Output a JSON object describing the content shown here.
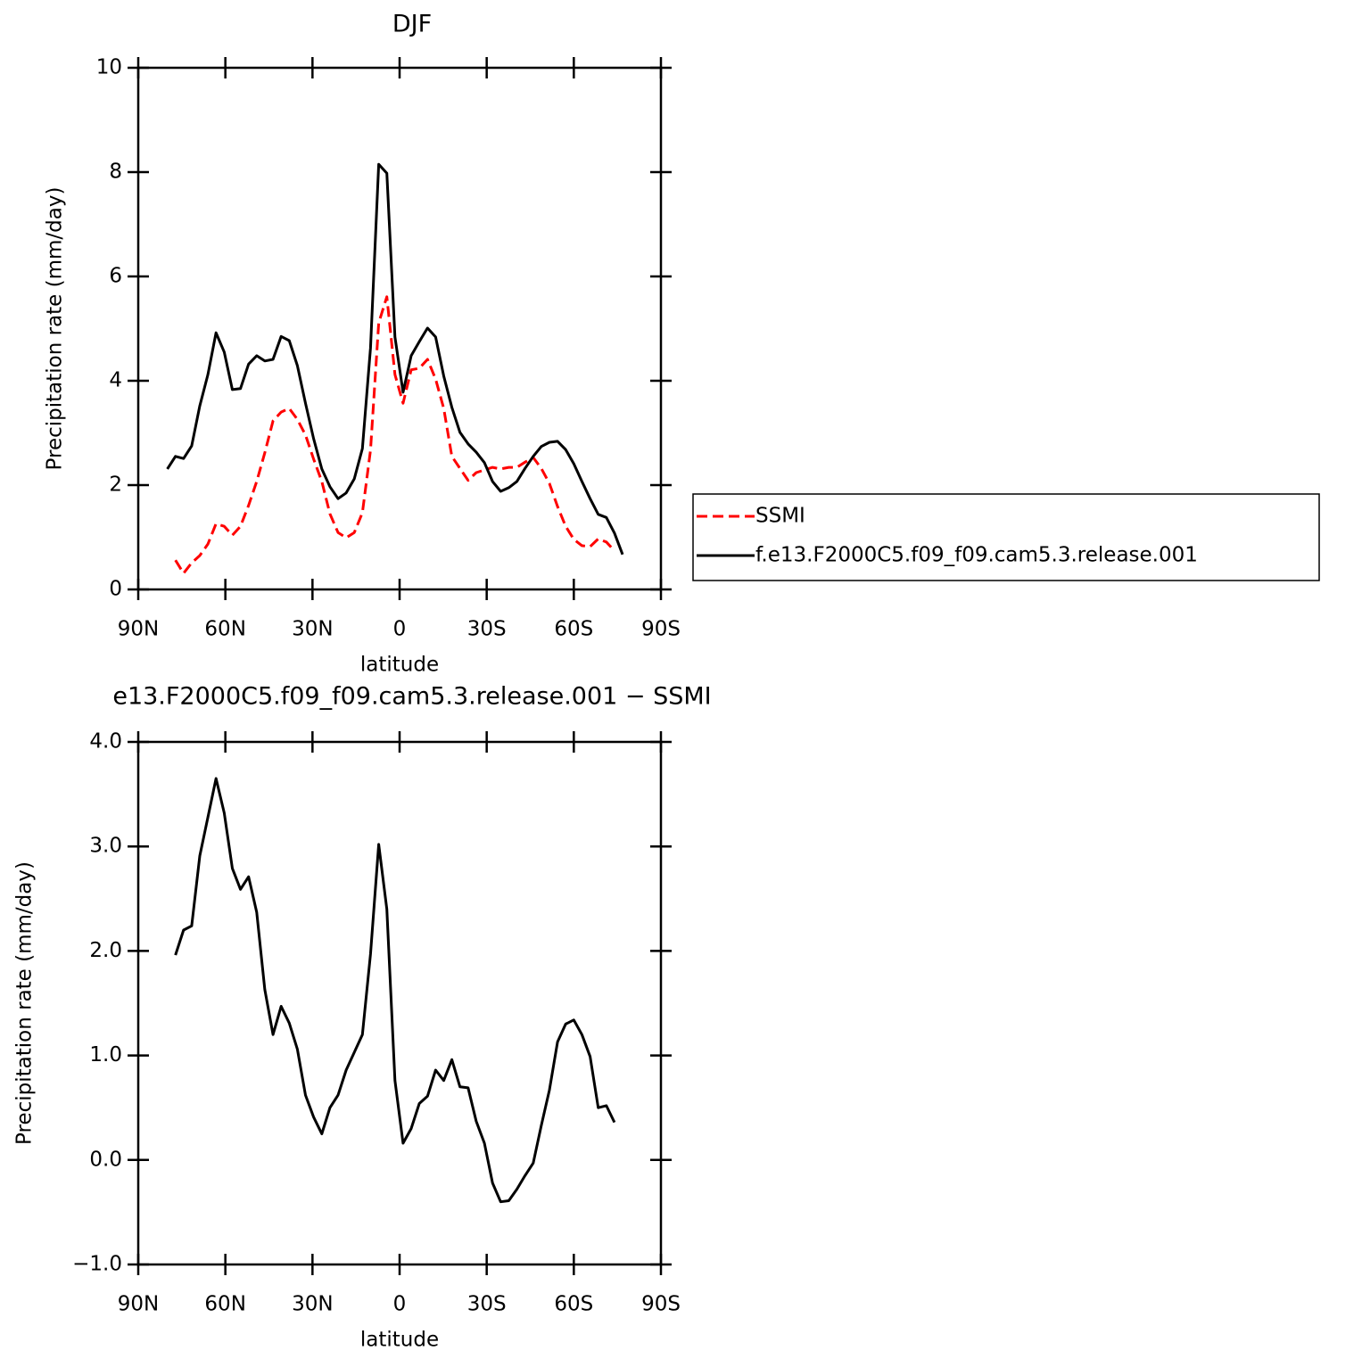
{
  "chart_data": [
    {
      "type": "line",
      "title": "DJF",
      "xlabel": "latitude",
      "ylabel": "Precipitation rate (mm/day)",
      "xlim": [
        90,
        -90
      ],
      "xticks": [
        {
          "value": 90,
          "label": "90N"
        },
        {
          "value": 60,
          "label": "60N"
        },
        {
          "value": 30,
          "label": "30N"
        },
        0,
        {
          "value": -30,
          "label": "30S"
        },
        {
          "value": -60,
          "label": "60S"
        },
        {
          "value": -90,
          "label": "90S"
        }
      ],
      "ylim": [
        0,
        10
      ],
      "yticks": [
        0,
        2,
        4,
        6,
        8,
        10
      ],
      "legend": "right",
      "series": [
        {
          "name": "SSMI",
          "color": "#ff0000",
          "linestyle": "dashed",
          "x": [
            77.2,
            74.4,
            71.6,
            68.8,
            66,
            63.2,
            60.4,
            57.6,
            54.8,
            52,
            49.2,
            46.4,
            43.6,
            40.8,
            38,
            35.2,
            32.4,
            29.6,
            26.8,
            24,
            21.2,
            18.4,
            15.6,
            12.8,
            10,
            7.2,
            4.4,
            1.6,
            -1.2,
            -4,
            -6.8,
            -9.6,
            -12.4,
            -15.2,
            -18,
            -20.8,
            -23.6,
            -26.4,
            -29.2,
            -32,
            -34.8,
            -37.6,
            -40.4,
            -43.2,
            -46,
            -48.8,
            -51.6,
            -54.4,
            -57.2,
            -60,
            -62.8,
            -65.6,
            -68.4,
            -71.2,
            -74
          ],
          "values": [
            0.56,
            0.31,
            0.51,
            0.65,
            0.87,
            1.26,
            1.21,
            1.04,
            1.21,
            1.61,
            2.07,
            2.62,
            3.23,
            3.4,
            3.47,
            3.26,
            2.96,
            2.5,
            2.07,
            1.45,
            1.09,
            0.99,
            1.09,
            1.47,
            2.67,
            5.11,
            5.61,
            4.12,
            3.57,
            4.21,
            4.24,
            4.41,
            4.03,
            3.47,
            2.55,
            2.32,
            2.09,
            2.24,
            2.29,
            2.34,
            2.31,
            2.34,
            2.34,
            2.44,
            2.53,
            2.32,
            2.03,
            1.59,
            1.21,
            0.96,
            0.84,
            0.82,
            0.97,
            0.91,
            0.74
          ]
        },
        {
          "name": "f.e13.F2000C5.f09_f09.cam5.3.release.001",
          "color": "#000000",
          "linestyle": "solid",
          "x": [
            80,
            77.2,
            74.4,
            71.6,
            68.8,
            66,
            63.2,
            60.4,
            57.6,
            54.8,
            52,
            49.2,
            46.4,
            43.6,
            40.8,
            38,
            35.2,
            32.4,
            29.6,
            26.8,
            24,
            21.2,
            18.4,
            15.6,
            12.8,
            10,
            7.2,
            4.4,
            1.6,
            -1.2,
            -4,
            -6.8,
            -9.6,
            -12.4,
            -15.2,
            -18,
            -20.8,
            -23.6,
            -26.4,
            -29.2,
            -32,
            -34.8,
            -37.6,
            -40.4,
            -43.2,
            -46,
            -48.8,
            -51.6,
            -54.4,
            -57.2,
            -60,
            -62.8,
            -65.6,
            -68.4,
            -71.2,
            -74,
            -76.8
          ],
          "values": [
            2.31,
            2.55,
            2.51,
            2.75,
            3.52,
            4.12,
            4.92,
            4.55,
            3.83,
            3.85,
            4.32,
            4.48,
            4.38,
            4.41,
            4.85,
            4.77,
            4.29,
            3.57,
            2.89,
            2.31,
            1.97,
            1.74,
            1.85,
            2.12,
            2.7,
            4.63,
            8.15,
            7.98,
            4.84,
            3.78,
            4.48,
            4.75,
            5.01,
            4.84,
            4.09,
            3.49,
            3.01,
            2.79,
            2.63,
            2.43,
            2.07,
            1.88,
            1.95,
            2.07,
            2.32,
            2.55,
            2.74,
            2.82,
            2.84,
            2.68,
            2.41,
            2.07,
            1.74,
            1.44,
            1.38,
            1.08,
            0.67
          ]
        }
      ]
    },
    {
      "type": "line",
      "title": "e13.F2000C5.f09_f09.cam5.3.release.001 − SSMI",
      "xlabel": "latitude",
      "ylabel": "Precipitation rate (mm/day)",
      "xlim": [
        90,
        -90
      ],
      "xticks": [
        {
          "value": 90,
          "label": "90N"
        },
        {
          "value": 60,
          "label": "60N"
        },
        {
          "value": 30,
          "label": "30N"
        },
        0,
        {
          "value": -30,
          "label": "30S"
        },
        {
          "value": -60,
          "label": "60S"
        },
        {
          "value": -90,
          "label": "90S"
        }
      ],
      "ylim": [
        -1,
        4
      ],
      "yticks": [
        {
          "value": -1,
          "label": "−1.0"
        },
        {
          "value": 0,
          "label": "0.0"
        },
        {
          "value": 1,
          "label": "1.0"
        },
        {
          "value": 2,
          "label": "2.0"
        },
        {
          "value": 3,
          "label": "3.0"
        },
        {
          "value": 4,
          "label": "4.0"
        }
      ],
      "series": [
        {
          "color": "#000000",
          "linestyle": "solid",
          "x": [
            77.2,
            74.4,
            71.6,
            68.8,
            66,
            63.2,
            60.4,
            57.6,
            54.8,
            52,
            49.2,
            46.4,
            43.6,
            40.8,
            38,
            35.2,
            32.4,
            29.6,
            26.8,
            24,
            21.2,
            18.4,
            15.6,
            12.8,
            10,
            7.2,
            4.4,
            1.6,
            -1.2,
            -4,
            -6.8,
            -9.6,
            -12.4,
            -15.2,
            -18,
            -20.8,
            -23.6,
            -26.4,
            -29.2,
            -32,
            -34.8,
            -37.6,
            -40.4,
            -43.2,
            -46,
            -48.8,
            -51.6,
            -54.4,
            -57.2,
            -60,
            -62.8,
            -65.6,
            -68.4,
            -71.2,
            -74
          ],
          "values": [
            1.96,
            2.2,
            2.24,
            2.91,
            3.28,
            3.65,
            3.32,
            2.79,
            2.59,
            2.71,
            2.37,
            1.63,
            1.2,
            1.47,
            1.31,
            1.06,
            0.62,
            0.41,
            0.25,
            0.5,
            0.62,
            0.86,
            1.03,
            1.2,
            1.97,
            3.02,
            2.4,
            0.76,
            0.16,
            0.3,
            0.54,
            0.61,
            0.86,
            0.76,
            0.96,
            0.7,
            0.69,
            0.37,
            0.16,
            -0.22,
            -0.4,
            -0.39,
            -0.28,
            -0.15,
            -0.03,
            0.33,
            0.67,
            1.13,
            1.3,
            1.34,
            1.2,
            0.99,
            0.5,
            0.52,
            0.36
          ]
        }
      ]
    }
  ]
}
